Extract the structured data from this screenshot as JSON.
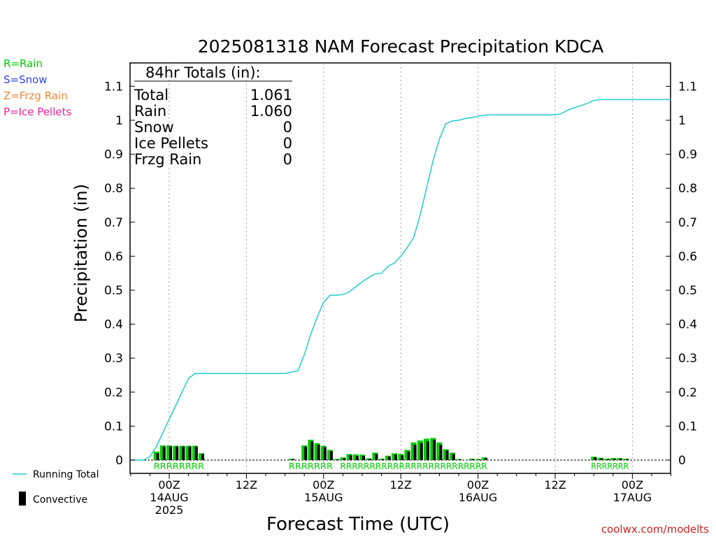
{
  "chart_data": {
    "type": "bar",
    "title": "2025081318 NAM Forecast Precipitation KDCA",
    "xlabel": "Forecast Time (UTC)",
    "ylabel": "Precipitation (in)",
    "ylim": [
      0,
      1.17
    ],
    "yticks": [
      "0",
      "0.1",
      "0.2",
      "0.3",
      "0.4",
      "0.5",
      "0.6",
      "0.7",
      "0.8",
      "0.9",
      "1",
      "1.1"
    ],
    "ytick_values": [
      0,
      0.1,
      0.2,
      0.3,
      0.4,
      0.5,
      0.6,
      0.7,
      0.8,
      0.9,
      1.0,
      1.1
    ],
    "xlim_hours": [
      -6,
      78
    ],
    "xticks": [
      {
        "hour": 0,
        "lines": [
          "00Z",
          "14AUG",
          "2025"
        ]
      },
      {
        "hour": 12,
        "lines": [
          "12Z"
        ]
      },
      {
        "hour": 24,
        "lines": [
          "00Z",
          "15AUG"
        ]
      },
      {
        "hour": 36,
        "lines": [
          "12Z"
        ]
      },
      {
        "hour": 48,
        "lines": [
          "00Z",
          "16AUG"
        ]
      },
      {
        "hour": 60,
        "lines": [
          "12Z"
        ]
      },
      {
        "hour": 72,
        "lines": [
          "00Z",
          "17AUG"
        ]
      }
    ],
    "grid_hours": [
      0,
      12,
      24,
      36,
      48,
      60,
      72
    ],
    "precip_type_legend": [
      {
        "label": "R=Rain",
        "color": "#00cc00"
      },
      {
        "label": "S=Snow",
        "color": "#3344ee"
      },
      {
        "label": "Z=Frzg Rain",
        "color": "#ee8833"
      },
      {
        "label": "P=Ice Pellets",
        "color": "#ee2299"
      }
    ],
    "series_legend": [
      {
        "label": "Running Total",
        "color": "#22cccc",
        "kind": "line"
      },
      {
        "label": "Convective",
        "color": "#000000",
        "kind": "bar"
      }
    ],
    "totals": {
      "header": "84hr Totals (in):",
      "rows": [
        {
          "label": "Total",
          "value": "1.061"
        },
        {
          "label": "Rain",
          "value": "1.060"
        },
        {
          "label": "Snow",
          "value": "0"
        },
        {
          "label": "Ice Pellets",
          "value": "0"
        },
        {
          "label": "Frzg Rain",
          "value": "0"
        }
      ]
    },
    "bar_colors": {
      "total": "#00cc00",
      "convective": "#000000"
    },
    "hourly_bars": [
      {
        "hour": -2,
        "total": 0.025,
        "convective": 0.02
      },
      {
        "hour": -1,
        "total": 0.043,
        "convective": 0.04
      },
      {
        "hour": 0,
        "total": 0.043,
        "convective": 0.04
      },
      {
        "hour": 1,
        "total": 0.042,
        "convective": 0.04
      },
      {
        "hour": 2,
        "total": 0.042,
        "convective": 0.04
      },
      {
        "hour": 3,
        "total": 0.042,
        "convective": 0.04
      },
      {
        "hour": 4,
        "total": 0.042,
        "convective": 0.04
      },
      {
        "hour": 5,
        "total": 0.02,
        "convective": 0.018
      },
      {
        "hour": 19,
        "total": 0.004,
        "convective": 0.003
      },
      {
        "hour": 21,
        "total": 0.043,
        "convective": 0.04
      },
      {
        "hour": 22,
        "total": 0.06,
        "convective": 0.055
      },
      {
        "hour": 23,
        "total": 0.05,
        "convective": 0.045
      },
      {
        "hour": 24,
        "total": 0.042,
        "convective": 0.038
      },
      {
        "hour": 25,
        "total": 0.03,
        "convective": 0.026
      },
      {
        "hour": 26,
        "total": 0.003,
        "convective": 0.002
      },
      {
        "hour": 27,
        "total": 0.008,
        "convective": 0.006
      },
      {
        "hour": 28,
        "total": 0.018,
        "convective": 0.014
      },
      {
        "hour": 29,
        "total": 0.017,
        "convective": 0.012
      },
      {
        "hour": 30,
        "total": 0.016,
        "convective": 0.012
      },
      {
        "hour": 31,
        "total": 0.005,
        "convective": 0.004
      },
      {
        "hour": 32,
        "total": 0.022,
        "convective": 0.018
      },
      {
        "hour": 33,
        "total": 0.004,
        "convective": 0.003
      },
      {
        "hour": 34,
        "total": 0.013,
        "convective": 0.01
      },
      {
        "hour": 35,
        "total": 0.02,
        "convective": 0.016
      },
      {
        "hour": 36,
        "total": 0.018,
        "convective": 0.014
      },
      {
        "hour": 37,
        "total": 0.03,
        "convective": 0.025
      },
      {
        "hour": 38,
        "total": 0.052,
        "convective": 0.045
      },
      {
        "hour": 39,
        "total": 0.058,
        "convective": 0.05
      },
      {
        "hour": 40,
        "total": 0.063,
        "convective": 0.055
      },
      {
        "hour": 41,
        "total": 0.065,
        "convective": 0.06
      },
      {
        "hour": 42,
        "total": 0.052,
        "convective": 0.045
      },
      {
        "hour": 43,
        "total": 0.032,
        "convective": 0.028
      },
      {
        "hour": 44,
        "total": 0.022,
        "convective": 0.018
      },
      {
        "hour": 45,
        "total": 0.003,
        "convective": 0.002
      },
      {
        "hour": 47,
        "total": 0.004,
        "convective": 0.003
      },
      {
        "hour": 48,
        "total": 0.003,
        "convective": 0.002
      },
      {
        "hour": 49,
        "total": 0.008,
        "convective": 0.006
      },
      {
        "hour": 66,
        "total": 0.01,
        "convective": 0.008
      },
      {
        "hour": 67,
        "total": 0.007,
        "convective": 0.005
      },
      {
        "hour": 68,
        "total": 0.004,
        "convective": 0.003
      },
      {
        "hour": 69,
        "total": 0.006,
        "convective": 0.004
      },
      {
        "hour": 70,
        "total": 0.006,
        "convective": 0.004
      },
      {
        "hour": 71,
        "total": 0.004,
        "convective": 0.003
      }
    ],
    "running_total": {
      "x": [
        -6,
        -4,
        -3,
        -2,
        -1,
        0,
        1,
        2,
        3,
        4,
        5,
        6,
        12,
        18,
        20,
        21,
        22,
        23,
        24,
        25,
        26,
        27,
        28,
        29,
        30,
        31,
        32,
        33,
        34,
        35,
        36,
        37,
        38,
        39,
        40,
        41,
        42,
        43,
        44,
        45,
        46,
        47,
        48,
        49,
        50,
        54,
        60,
        61,
        62,
        63,
        64,
        65,
        66,
        67,
        68,
        69,
        70,
        71,
        72,
        78
      ],
      "y": [
        0,
        0,
        0.01,
        0.04,
        0.08,
        0.12,
        0.16,
        0.2,
        0.24,
        0.255,
        0.255,
        0.255,
        0.255,
        0.255,
        0.263,
        0.31,
        0.37,
        0.42,
        0.465,
        0.485,
        0.485,
        0.487,
        0.495,
        0.51,
        0.525,
        0.537,
        0.548,
        0.55,
        0.57,
        0.58,
        0.6,
        0.625,
        0.655,
        0.72,
        0.8,
        0.88,
        0.945,
        0.99,
        0.998,
        1.0,
        1.005,
        1.008,
        1.012,
        1.015,
        1.016,
        1.016,
        1.016,
        1.02,
        1.03,
        1.037,
        1.043,
        1.05,
        1.058,
        1.061,
        1.061,
        1.061,
        1.061,
        1.061,
        1.061,
        1.061
      ]
    },
    "precip_type_segments": [
      {
        "text": "RRRRRRRR",
        "start_hour": -2,
        "end_hour": 5
      },
      {
        "text": "RRRRRRR",
        "start_hour": 19,
        "end_hour": 25
      },
      {
        "text": "RRRRRRRRRRRRRRRRRRRRRRRRR",
        "start_hour": 27,
        "end_hour": 49
      },
      {
        "text": "RRRRRRR",
        "start_hour": 66,
        "end_hour": 71
      }
    ],
    "source": "coolwx.com/modelts"
  }
}
